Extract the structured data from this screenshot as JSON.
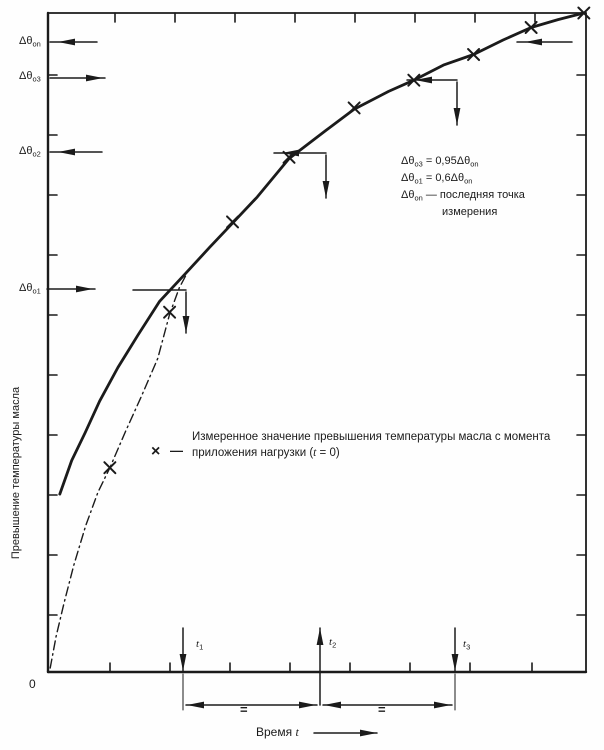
{
  "figure": {
    "background": "#fefefe",
    "ink": "#1b1b1b",
    "origin_label": "0"
  },
  "y_axis": {
    "title": "Превышение температуры масла",
    "labels": [
      [
        {
          "t": "Δθ"
        },
        {
          "t": "оn",
          "sub": true
        }
      ],
      [
        {
          "t": "Δθ"
        },
        {
          "t": "о3",
          "sub": true
        }
      ],
      [
        {
          "t": "Δθ"
        },
        {
          "t": "о2",
          "sub": true
        }
      ],
      [
        {
          "t": "Δθ"
        },
        {
          "t": "о1",
          "sub": true
        }
      ]
    ]
  },
  "x_axis": {
    "title": [
      {
        "t": "Время "
      },
      {
        "t": "t",
        "italic": true
      }
    ],
    "time_labels": [
      [
        {
          "t": "t",
          "italic": true
        },
        {
          "t": "1",
          "sub": true
        }
      ],
      [
        {
          "t": "t",
          "italic": true
        },
        {
          "t": "2",
          "sub": true
        }
      ],
      [
        {
          "t": "t",
          "italic": true
        },
        {
          "t": "3",
          "sub": true
        }
      ]
    ],
    "equal_marks": [
      "=",
      "="
    ]
  },
  "annotation": {
    "line1": [
      {
        "t": "Δθ"
      },
      {
        "t": "о3",
        "sub": true
      },
      {
        "t": " = 0,95Δθ"
      },
      {
        "t": "оn",
        "sub": true
      }
    ],
    "line2": [
      {
        "t": "Δθ"
      },
      {
        "t": "о1",
        "sub": true
      },
      {
        "t": " = 0,6Δθ"
      },
      {
        "t": "оn",
        "sub": true
      }
    ],
    "line3": [
      {
        "t": "Δθ"
      },
      {
        "t": "оn",
        "sub": true
      },
      {
        "t": " — последняя точка"
      }
    ],
    "line4": "измерения"
  },
  "legend": {
    "marker": "×",
    "dash": "—",
    "line1": "Измеренное значение превышения температуры масла с момента",
    "line2": [
      {
        "t": "приложения нагрузки ("
      },
      {
        "t": "t",
        "italic": true
      },
      {
        "t": " = 0)"
      }
    ]
  },
  "chart_data": {
    "type": "line",
    "title": "",
    "xlabel": "Время t",
    "ylabel": "Превышение температуры масла",
    "axis_note": "Оси без числовой шкалы; значения нормированы: x = доля ширины оси времени, v = Δθ/Δθоn",
    "grid": false,
    "legend_position": "center",
    "series": [
      {
        "name": "Сглаженная кривая превышения температуры масла",
        "style": "solid",
        "points": [
          [
            0.022,
            0.27
          ],
          [
            0.044,
            0.321
          ],
          [
            0.069,
            0.363
          ],
          [
            0.096,
            0.411
          ],
          [
            0.13,
            0.462
          ],
          [
            0.167,
            0.511
          ],
          [
            0.207,
            0.562
          ],
          [
            0.256,
            0.605
          ],
          [
            0.3,
            0.644
          ],
          [
            0.343,
            0.681
          ],
          [
            0.389,
            0.721
          ],
          [
            0.448,
            0.779
          ],
          [
            0.517,
            0.822
          ],
          [
            0.569,
            0.854
          ],
          [
            0.633,
            0.881
          ],
          [
            0.68,
            0.898
          ],
          [
            0.735,
            0.921
          ],
          [
            0.791,
            0.937
          ],
          [
            0.846,
            0.959
          ],
          [
            0.898,
            0.978
          ],
          [
            0.948,
            0.99
          ],
          [
            0.996,
            1.0
          ]
        ]
      },
      {
        "name": "Измеренная кривая с момента приложения нагрузки (штрихпунктир)",
        "style": "dash-dot",
        "points": [
          [
            0.004,
            0.006
          ],
          [
            0.015,
            0.054
          ],
          [
            0.03,
            0.105
          ],
          [
            0.048,
            0.162
          ],
          [
            0.07,
            0.222
          ],
          [
            0.093,
            0.273
          ],
          [
            0.115,
            0.31
          ],
          [
            0.144,
            0.365
          ],
          [
            0.174,
            0.419
          ],
          [
            0.204,
            0.476
          ],
          [
            0.226,
            0.543
          ],
          [
            0.244,
            0.583
          ],
          [
            0.257,
            0.603
          ]
        ]
      },
      {
        "name": "Измеренные значения (×)",
        "style": "x-markers",
        "points": [
          [
            0.115,
            0.31
          ],
          [
            0.226,
            0.546
          ],
          [
            0.343,
            0.683
          ],
          [
            0.448,
            0.781
          ],
          [
            0.569,
            0.856
          ],
          [
            0.68,
            0.898
          ],
          [
            0.791,
            0.937
          ],
          [
            0.898,
            0.978
          ],
          [
            0.996,
            1.0
          ]
        ]
      }
    ],
    "reference_levels": [
      {
        "label": "Δθоn",
        "v": 1.0
      },
      {
        "label": "Δθо3",
        "v": 0.943
      },
      {
        "label": "Δθо2",
        "v": 0.825
      },
      {
        "label": "Δθо1",
        "v": 0.607
      }
    ],
    "time_marks": [
      {
        "label": "t1",
        "x": 0.251
      },
      {
        "label": "t2",
        "x": 0.506
      },
      {
        "label": "t3",
        "x": 0.757
      }
    ],
    "relations": [
      "Δθо3 = 0,95Δθоn",
      "Δθо1 = 0,6Δθоn",
      "Δθоn — последняя точка измерения",
      "t2 − t1 = t3 − t2"
    ]
  }
}
